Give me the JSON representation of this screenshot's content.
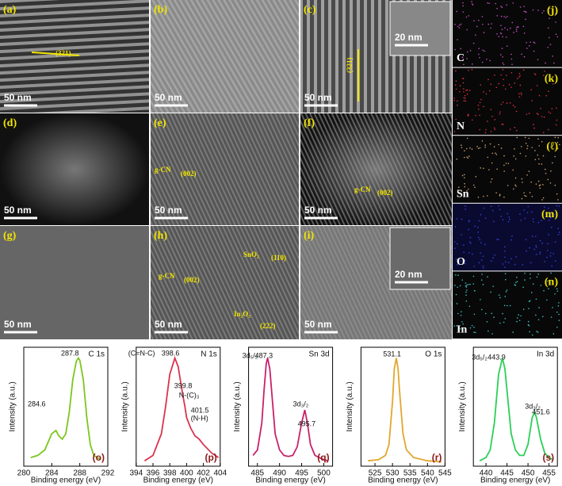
{
  "micrographs": [
    {
      "label": "(a)",
      "scale_bars": [
        "50 nm"
      ],
      "notes": [
        "(321)"
      ]
    },
    {
      "label": "(b)",
      "scale_bars": [
        "50 nm"
      ],
      "notes": []
    },
    {
      "label": "(c)",
      "scale_bars": [
        "50 nm",
        "20 nm"
      ],
      "notes": [
        "(321)"
      ]
    },
    {
      "label": "(d)",
      "scale_bars": [
        "50 nm"
      ],
      "notes": []
    },
    {
      "label": "(e)",
      "scale_bars": [
        "50 nm"
      ],
      "notes": [
        "g-CN",
        "(002)"
      ]
    },
    {
      "label": "(f)",
      "scale_bars": [
        "50 nm"
      ],
      "notes": [
        "g-CN",
        "(002)"
      ]
    },
    {
      "label": "(g)",
      "scale_bars": [
        "50 nm"
      ],
      "notes": []
    },
    {
      "label": "(h)",
      "scale_bars": [
        "50 nm"
      ],
      "notes": [
        "g-CN",
        "(002)",
        "SnO₂",
        "(110)",
        "In₂O₃",
        "(222)"
      ]
    },
    {
      "label": "(i)",
      "scale_bars": [
        "50 nm",
        "20 nm"
      ],
      "notes": []
    }
  ],
  "maps": [
    {
      "label": "(j)",
      "element": "C"
    },
    {
      "label": "(k)",
      "element": "N"
    },
    {
      "label": "(ℓ)",
      "element": "Sn"
    },
    {
      "label": "(m)",
      "element": "O"
    },
    {
      "label": "(n)",
      "element": "In"
    }
  ],
  "chart_data": [
    {
      "type": "line",
      "title": "C 1s",
      "panel": "(o)",
      "color": "#7cc61e",
      "xlabel": "Binding energy (eV)",
      "ylabel": "Intensity (a.u.)",
      "x": [
        281,
        282,
        283,
        284,
        284.6,
        285,
        285.5,
        286,
        286.5,
        287,
        287.5,
        287.8,
        288,
        288.5,
        289,
        289.5,
        290,
        291
      ],
      "values": [
        8,
        10,
        15,
        30,
        33,
        28,
        25,
        30,
        50,
        80,
        97,
        100,
        98,
        80,
        45,
        20,
        10,
        6
      ],
      "xlim": [
        280,
        292
      ],
      "xticks": [
        280,
        284,
        288,
        292
      ],
      "ylim": [
        0,
        110
      ],
      "annotations": [
        "287.8",
        "284.6"
      ]
    },
    {
      "type": "line",
      "title": "N 1s",
      "panel": "(p)",
      "color": "#d8344e",
      "xlabel": "Binding energy (eV)",
      "ylabel": "Intensity (a.u.)",
      "x": [
        395,
        396,
        397,
        397.5,
        398,
        398.6,
        399,
        399.5,
        399.8,
        400,
        400.5,
        401,
        401.5,
        402,
        403,
        403.8
      ],
      "values": [
        5,
        10,
        30,
        55,
        85,
        100,
        92,
        68,
        55,
        45,
        35,
        28,
        25,
        20,
        12,
        8
      ],
      "xlim": [
        394,
        404
      ],
      "xticks": [
        394,
        396,
        398,
        400,
        402,
        404
      ],
      "ylim": [
        0,
        110
      ],
      "annotations": [
        "(C=N-C)",
        "398.6",
        "399.8",
        "N-(C)₃",
        "401.5",
        "(N-H)"
      ]
    },
    {
      "type": "line",
      "title": "Sn 3d",
      "panel": "(q)",
      "color": "#c8206a",
      "xlabel": "Binding energy (eV)",
      "ylabel": "Intensity (a.u.)",
      "x": [
        484,
        485,
        486,
        486.5,
        487,
        487.3,
        487.8,
        488.5,
        489,
        490,
        491,
        492,
        493,
        494,
        495,
        495.7,
        496.3,
        497,
        498,
        500,
        501
      ],
      "values": [
        10,
        15,
        40,
        70,
        95,
        100,
        90,
        55,
        30,
        15,
        10,
        9,
        10,
        18,
        40,
        52,
        40,
        20,
        10,
        6,
        5
      ],
      "xlim": [
        483,
        502
      ],
      "xticks": [
        485,
        490,
        495,
        500
      ],
      "ylim": [
        0,
        110
      ],
      "annotations": [
        "3d₅/₂",
        "487.3",
        "3d₃/₂",
        "495.7"
      ]
    },
    {
      "type": "line",
      "title": "O 1s",
      "panel": "(r)",
      "color": "#e3a62c",
      "xlabel": "Binding energy (eV)",
      "ylabel": "Intensity (a.u.)",
      "x": [
        523,
        526,
        528,
        529,
        530,
        530.5,
        531.1,
        531.6,
        532,
        533,
        534,
        536,
        540,
        544
      ],
      "values": [
        5,
        6,
        10,
        20,
        60,
        90,
        100,
        90,
        70,
        30,
        15,
        8,
        5,
        4
      ],
      "xlim": [
        521,
        545
      ],
      "xticks": [
        525,
        530,
        535,
        540,
        545
      ],
      "ylim": [
        0,
        110
      ],
      "annotations": [
        "531.1"
      ]
    },
    {
      "type": "line",
      "title": "In 3d",
      "panel": "(s)",
      "color": "#2bcf55",
      "xlabel": "Binding energy (eV)",
      "ylabel": "Intensity (a.u.)",
      "x": [
        438.5,
        440,
        441,
        442,
        443,
        443.9,
        444.5,
        445,
        446,
        447,
        448,
        449,
        450,
        451,
        451.6,
        452,
        453,
        454,
        455,
        456
      ],
      "values": [
        5,
        8,
        15,
        40,
        85,
        100,
        90,
        70,
        30,
        15,
        10,
        10,
        20,
        45,
        50,
        45,
        25,
        12,
        8,
        6
      ],
      "xlim": [
        437,
        457
      ],
      "xticks": [
        440,
        445,
        450,
        455
      ],
      "ylim": [
        0,
        110
      ],
      "annotations": [
        "3d₅/₂",
        "443.9",
        "3d₃/₂",
        "451.6"
      ]
    }
  ]
}
